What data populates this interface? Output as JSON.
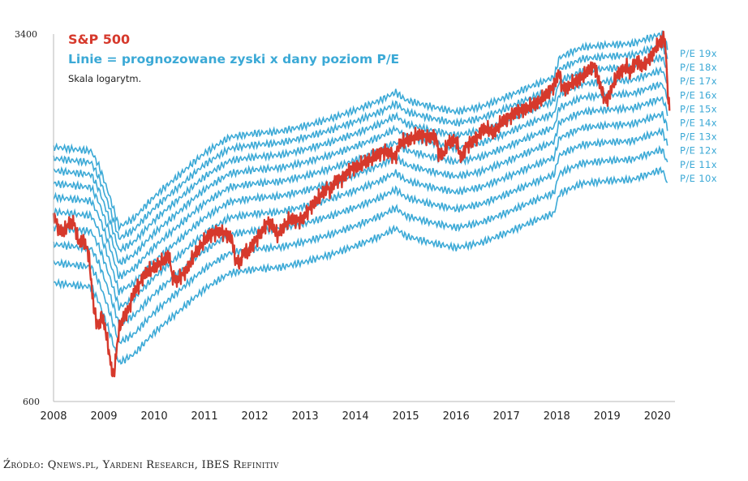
{
  "chart_data": {
    "type": "line",
    "title": "S&P 500",
    "subtitle": "Linie = prognozowane zyski x dany poziom P/E",
    "scale_note": "Skala logarytm.",
    "y_scale": "log",
    "ylim": [
      600,
      3400
    ],
    "y_ticks": [
      "3400",
      "600"
    ],
    "xlim": [
      2008.0,
      2020.35
    ],
    "x_ticks": [
      2008,
      2009,
      2010,
      2011,
      2012,
      2013,
      2014,
      2015,
      2016,
      2017,
      2018,
      2019,
      2020
    ],
    "colors": {
      "sp500": "#d6392c",
      "pe_lines": "#3ba9d6"
    },
    "forward_eps": {
      "x": [
        2008.0,
        2008.75,
        2008.9,
        2009.1,
        2009.3,
        2009.6,
        2010.0,
        2010.5,
        2011.0,
        2011.5,
        2012.0,
        2012.5,
        2013.0,
        2013.5,
        2014.0,
        2014.5,
        2014.8,
        2015.0,
        2015.5,
        2016.0,
        2016.5,
        2017.0,
        2017.5,
        2017.95,
        2018.05,
        2018.5,
        2019.0,
        2019.5,
        2020.0,
        2020.1,
        2020.2
      ],
      "y": [
        105,
        103,
        96,
        84,
        72,
        75,
        83,
        92,
        102,
        110,
        112,
        113,
        116,
        120,
        125,
        131,
        136,
        131,
        127,
        124,
        127,
        133,
        140,
        146,
        160,
        168,
        170,
        171,
        178,
        179,
        168
      ]
    },
    "series": [
      {
        "name": "S&P 500",
        "x": [
          2008.0,
          2008.1,
          2008.2,
          2008.3,
          2008.4,
          2008.5,
          2008.6,
          2008.7,
          2008.75,
          2008.8,
          2008.85,
          2008.9,
          2008.95,
          2009.0,
          2009.05,
          2009.1,
          2009.15,
          2009.2,
          2009.3,
          2009.4,
          2009.5,
          2009.6,
          2009.7,
          2009.8,
          2009.9,
          2010.0,
          2010.1,
          2010.2,
          2010.3,
          2010.35,
          2010.45,
          2010.5,
          2010.6,
          2010.7,
          2010.8,
          2010.9,
          2011.0,
          2011.1,
          2011.2,
          2011.3,
          2011.45,
          2011.55,
          2011.6,
          2011.7,
          2011.8,
          2011.85,
          2011.95,
          2012.1,
          2012.25,
          2012.35,
          2012.45,
          2012.55,
          2012.7,
          2012.85,
          2012.95,
          2013.1,
          2013.3,
          2013.45,
          2013.5,
          2013.6,
          2013.75,
          2013.9,
          2014.1,
          2014.2,
          2014.3,
          2014.5,
          2014.6,
          2014.8,
          2014.85,
          2014.9,
          2015.0,
          2015.1,
          2015.2,
          2015.3,
          2015.45,
          2015.6,
          2015.65,
          2015.75,
          2015.85,
          2016.0,
          2016.1,
          2016.2,
          2016.35,
          2016.45,
          2016.5,
          2016.6,
          2016.75,
          2016.9,
          2017.0,
          2017.2,
          2017.4,
          2017.6,
          2017.8,
          2017.95,
          2018.05,
          2018.1,
          2018.2,
          2018.3,
          2018.4,
          2018.55,
          2018.7,
          2018.75,
          2018.85,
          2018.95,
          2019.0,
          2019.1,
          2019.2,
          2019.3,
          2019.4,
          2019.45,
          2019.5,
          2019.6,
          2019.7,
          2019.8,
          2019.9,
          2020.0,
          2020.1,
          2020.13,
          2020.17,
          2020.2,
          2020.24
        ],
        "values": [
          1460,
          1350,
          1330,
          1390,
          1400,
          1270,
          1290,
          1200,
          1050,
          930,
          880,
          850,
          900,
          870,
          820,
          760,
          700,
          680,
          840,
          900,
          930,
          1010,
          1040,
          1090,
          1110,
          1130,
          1150,
          1170,
          1205,
          1090,
          1060,
          1080,
          1100,
          1140,
          1200,
          1240,
          1280,
          1320,
          1330,
          1340,
          1320,
          1290,
          1180,
          1150,
          1230,
          1200,
          1260,
          1320,
          1400,
          1380,
          1310,
          1360,
          1420,
          1410,
          1420,
          1500,
          1580,
          1650,
          1610,
          1700,
          1720,
          1800,
          1830,
          1860,
          1880,
          1940,
          1960,
          1900,
          2000,
          2040,
          2050,
          2070,
          2100,
          2110,
          2090,
          2100,
          1940,
          1930,
          2040,
          2060,
          1880,
          2000,
          2060,
          2100,
          2170,
          2180,
          2130,
          2240,
          2270,
          2360,
          2400,
          2450,
          2550,
          2670,
          2850,
          2650,
          2640,
          2700,
          2720,
          2800,
          2900,
          2930,
          2700,
          2500,
          2500,
          2650,
          2800,
          2860,
          2920,
          2800,
          2900,
          3000,
          2910,
          3000,
          3100,
          3230,
          3290,
          3380,
          3100,
          2650,
          2350
        ]
      },
      {
        "name": "P/E 10x",
        "pe": 10
      },
      {
        "name": "P/E 11x",
        "pe": 11
      },
      {
        "name": "P/E 12x",
        "pe": 12
      },
      {
        "name": "P/E 13x",
        "pe": 13
      },
      {
        "name": "P/E 14x",
        "pe": 14
      },
      {
        "name": "P/E 15x",
        "pe": 15
      },
      {
        "name": "P/E 16x",
        "pe": 16
      },
      {
        "name": "P/E 17x",
        "pe": 17
      },
      {
        "name": "P/E 18x",
        "pe": 18
      },
      {
        "name": "P/E 19x",
        "pe": 19
      }
    ],
    "pe_labels": [
      "P/E 19x",
      "P/E 18x",
      "P/E 17x",
      "P/E 16x",
      "P/E 15x",
      "P/E 14x",
      "P/E 13x",
      "P/E 12x",
      "P/E 11x",
      "P/E 10x"
    ]
  },
  "source": "Źródło: Qnews.pl, Yardeni Research, IBES Refinitiv"
}
